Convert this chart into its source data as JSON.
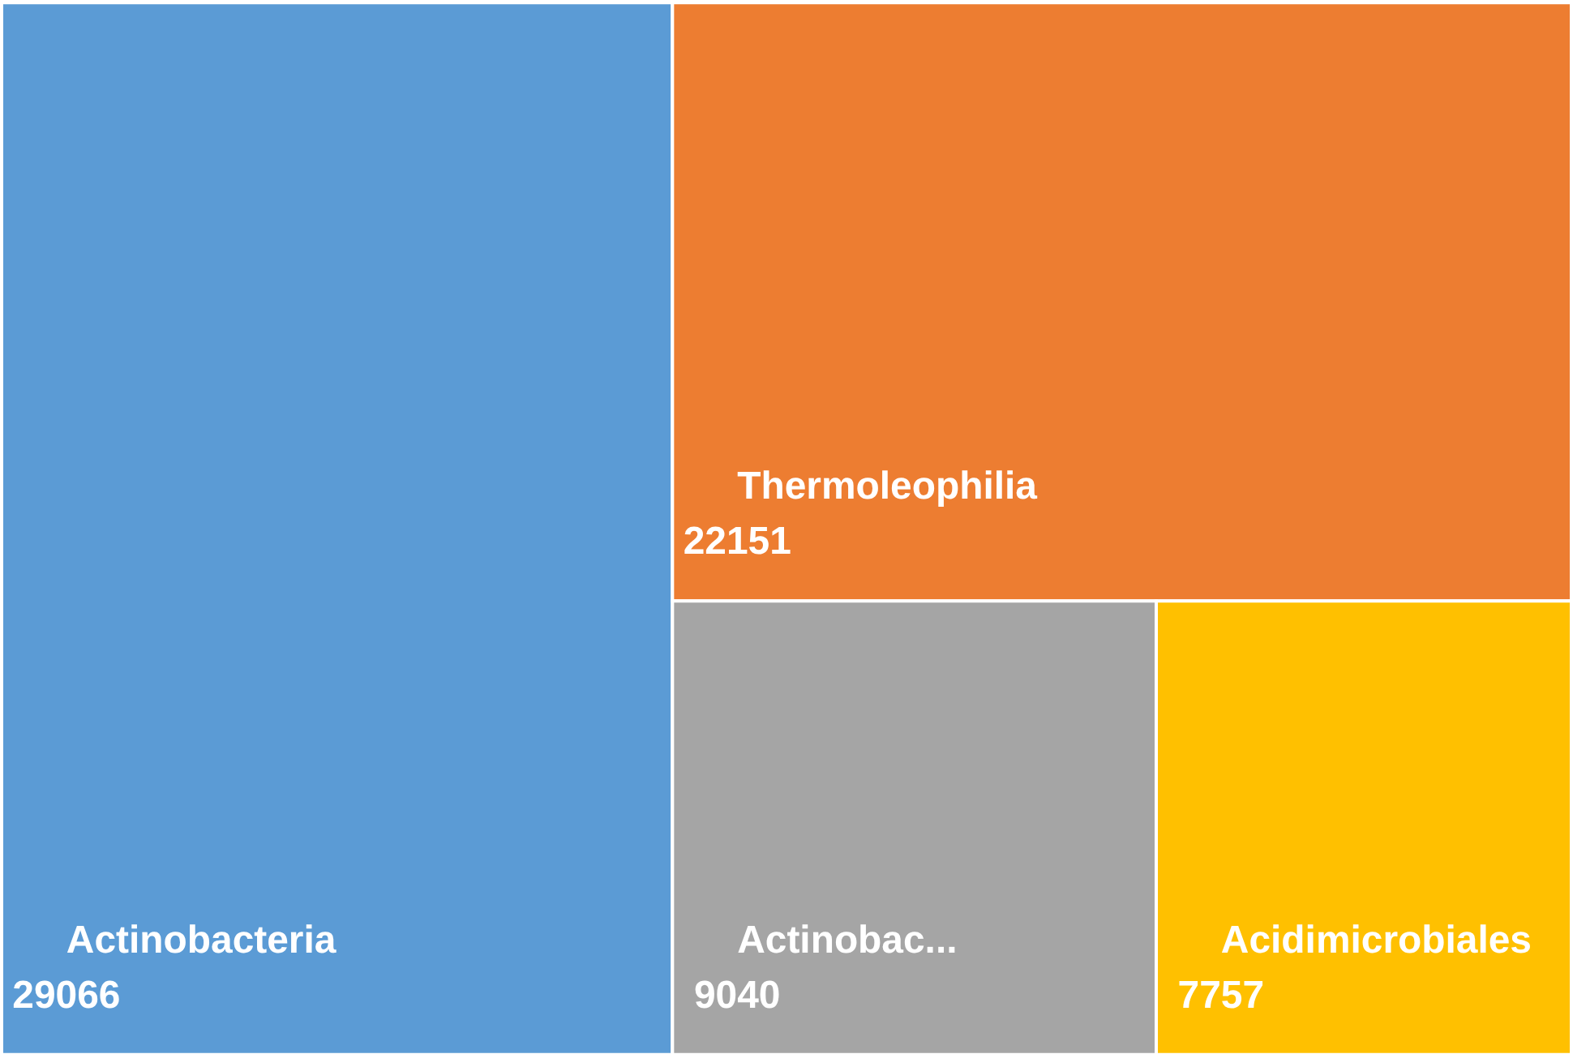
{
  "chart_data": {
    "type": "other",
    "categories": [
      "Actinobacteria",
      "Thermoleophilia",
      "Actinobac...",
      "Acidimicrobiales"
    ],
    "values": [
      29066,
      22151,
      9040,
      7757
    ],
    "colors": [
      "#5b9bd5",
      "#ed7d31",
      "#a5a5a5",
      "#ffc000"
    ],
    "data_labels": true
  }
}
